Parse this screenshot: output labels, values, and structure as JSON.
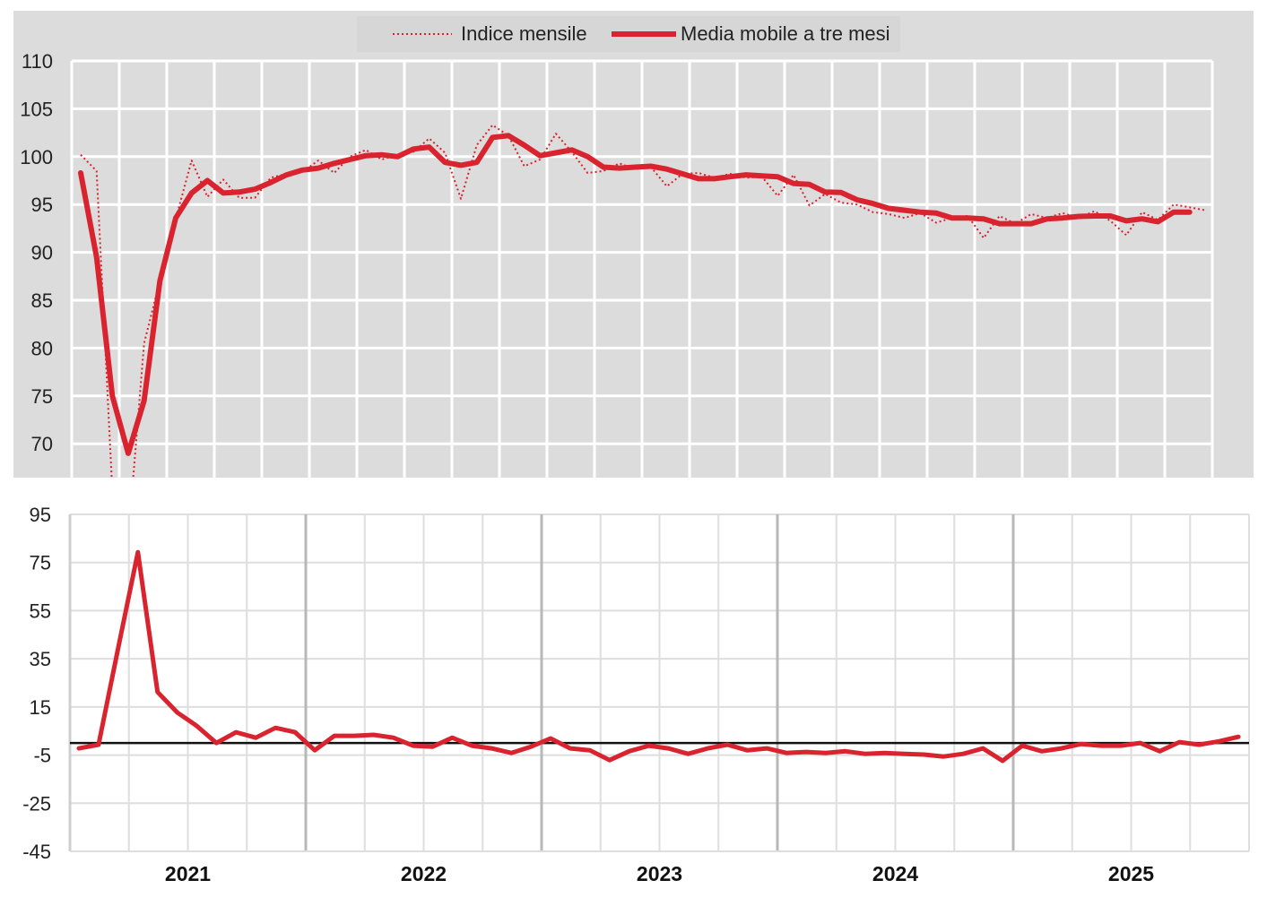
{
  "chart_data": [
    {
      "type": "line",
      "legend": {
        "placement": "top-center",
        "entries": [
          "Indice mensile",
          "Media mobile a tre mesi"
        ]
      },
      "ylim": [
        66.5,
        110
      ],
      "yticks": [
        "110",
        "105",
        "100",
        "95",
        "90",
        "85",
        "80",
        "75",
        "70"
      ],
      "grid": true,
      "background": "#dcdcdc",
      "series": [
        {
          "name": "Indice mensile",
          "style": "dotted",
          "color": "#d9232e",
          "values": [
            100.2,
            98.5,
            65,
            60,
            80.5,
            87,
            93.5,
            99.6,
            95.8,
            97.6,
            95.7,
            95.7,
            97.8,
            98.2,
            98.4,
            99.6,
            98.3,
            100,
            100.7,
            99.7,
            100.2,
            100.5,
            101.9,
            100.4,
            95.6,
            101.2,
            103.3,
            102.2,
            99,
            99.7,
            102.4,
            100.5,
            98.3,
            98.5,
            99.3,
            98.7,
            98.9,
            96.9,
            98.2,
            98.3,
            97.8,
            98.2,
            97.8,
            97.9,
            95.9,
            98.1,
            94.9,
            96.1,
            95.2,
            95,
            94.2,
            94,
            93.6,
            94.1,
            93.1,
            93.6,
            93.8,
            91.5,
            93.8,
            93,
            94,
            93.6,
            94.1,
            93.6,
            94.3,
            93.3,
            91.8,
            94.2,
            93.4,
            95,
            94.7,
            94.4
          ]
        },
        {
          "name": "Media mobile a tre mesi",
          "style": "solid",
          "color": "#d9232e",
          "values": [
            98.3,
            89.5,
            75,
            69,
            74.5,
            87,
            93.6,
            96.2,
            97.5,
            96.2,
            96.3,
            96.6,
            97.3,
            98.1,
            98.6,
            98.8,
            99.3,
            99.7,
            100.1,
            100.2,
            100.0,
            100.8,
            101.0,
            99.4,
            99.1,
            99.4,
            102.0,
            102.2,
            101.2,
            100.1,
            100.4,
            100.7,
            100.0,
            98.9,
            98.8,
            98.9,
            99.0,
            98.7,
            98.2,
            97.7,
            97.7,
            97.9,
            98.1,
            98.0,
            97.9,
            97.2,
            97.1,
            96.3,
            96.25,
            95.5,
            95.1,
            94.6,
            94.4,
            94.2,
            94.1,
            93.6,
            93.6,
            93.5,
            93.0,
            93.0,
            93.0,
            93.5,
            93.6,
            93.75,
            93.8,
            93.8,
            93.3,
            93.5,
            93.2,
            94.2,
            94.2,
            null
          ]
        }
      ]
    },
    {
      "type": "line",
      "ylim": [
        -45,
        95
      ],
      "yticks": [
        "95",
        "75",
        "55",
        "35",
        "15",
        "-5",
        "-25",
        "-45"
      ],
      "xticks": [
        "2021",
        "2022",
        "2023",
        "2024",
        "2025"
      ],
      "grid": true,
      "reference_line": 0,
      "series": [
        {
          "color": "#d9232e",
          "values": [
            -2.2,
            -0.7,
            39.5,
            79.3,
            21.2,
            12.7,
            7.1,
            0,
            4.5,
            2.2,
            6.3,
            4.5,
            -3,
            3,
            3,
            3.4,
            2.2,
            -1.1,
            -1.5,
            2.2,
            -1.1,
            -2.2,
            -4.1,
            -1.5,
            1.9,
            -2.2,
            -3,
            -7.1,
            -3.4,
            -1.1,
            -2.2,
            -4.5,
            -2.2,
            -0.7,
            -3,
            -2.2,
            -4.1,
            -3.7,
            -4.1,
            -3.4,
            -4.5,
            -4.1,
            -4.5,
            -4.8,
            -5.6,
            -4.5,
            -2.2,
            -7.4,
            -1.1,
            -3.4,
            -2.2,
            -0.4,
            -1.1,
            -1.1,
            0,
            -3.4,
            0.4,
            -0.7,
            0.7,
            2.6
          ]
        }
      ]
    }
  ]
}
